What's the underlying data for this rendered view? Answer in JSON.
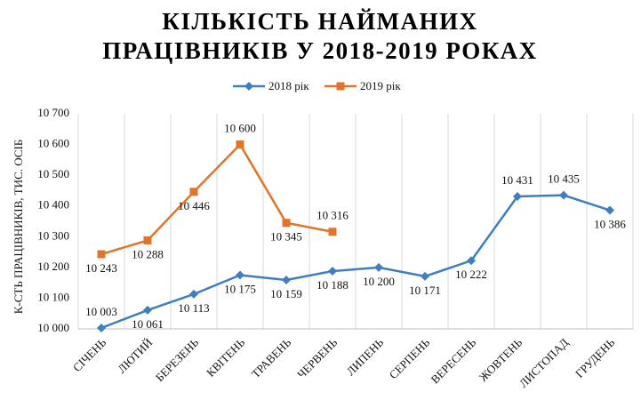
{
  "chart_data": {
    "type": "line",
    "title": "КІЛЬКІСТЬ НАЙМАНИХ ПРАЦІВНИКІВ У 2018-2019 РОКАХ",
    "ylabel": "К-СТЬ ПРАЦІВНИКІВ, ТИС. ОСІБ",
    "categories": [
      "СІЧЕНЬ",
      "ЛЮТИЙ",
      "БЕРЕЗЕНЬ",
      "КВІТЕНЬ",
      "ТРАВЕНЬ",
      "ЧЕРВЕНЬ",
      "ЛИПЕНЬ",
      "СЕРПЕНЬ",
      "ВЕРЕСЕНЬ",
      "ЖОВТЕНЬ",
      "ЛИСТОПАД",
      "ГРУДЕНЬ"
    ],
    "series": [
      {
        "name": "2018 рік",
        "color": "#3f7fbf",
        "marker": "diamond",
        "values": [
          10003,
          10061,
          10113,
          10175,
          10159,
          10188,
          10200,
          10171,
          10222,
          10431,
          10435,
          10386
        ],
        "value_labels": [
          "10 003",
          "10 061",
          "10 113",
          "10 175",
          "10 159",
          "10 188",
          "10 200",
          "10 171",
          "10 222",
          "10 431",
          "10 435",
          "10 386"
        ]
      },
      {
        "name": "2019 рік",
        "color": "#e0742a",
        "marker": "square",
        "values": [
          10243,
          10288,
          10446,
          10600,
          10345,
          10316,
          null,
          null,
          null,
          null,
          null,
          null
        ],
        "value_labels": [
          "10 243",
          "10 288",
          "10 446",
          "10 600",
          "10 345",
          "10 316",
          null,
          null,
          null,
          null,
          null,
          null
        ]
      }
    ],
    "ylim": [
      10000,
      10700
    ],
    "yticks": [
      {
        "value": 10000,
        "label": "10 000"
      },
      {
        "value": 10100,
        "label": "10 100"
      },
      {
        "value": 10200,
        "label": "10 200"
      },
      {
        "value": 10300,
        "label": "10 300"
      },
      {
        "value": 10400,
        "label": "10 400"
      },
      {
        "value": 10500,
        "label": "10 500"
      },
      {
        "value": 10600,
        "label": "10 600"
      },
      {
        "value": 10700,
        "label": "10 700"
      }
    ],
    "legend": "top"
  }
}
